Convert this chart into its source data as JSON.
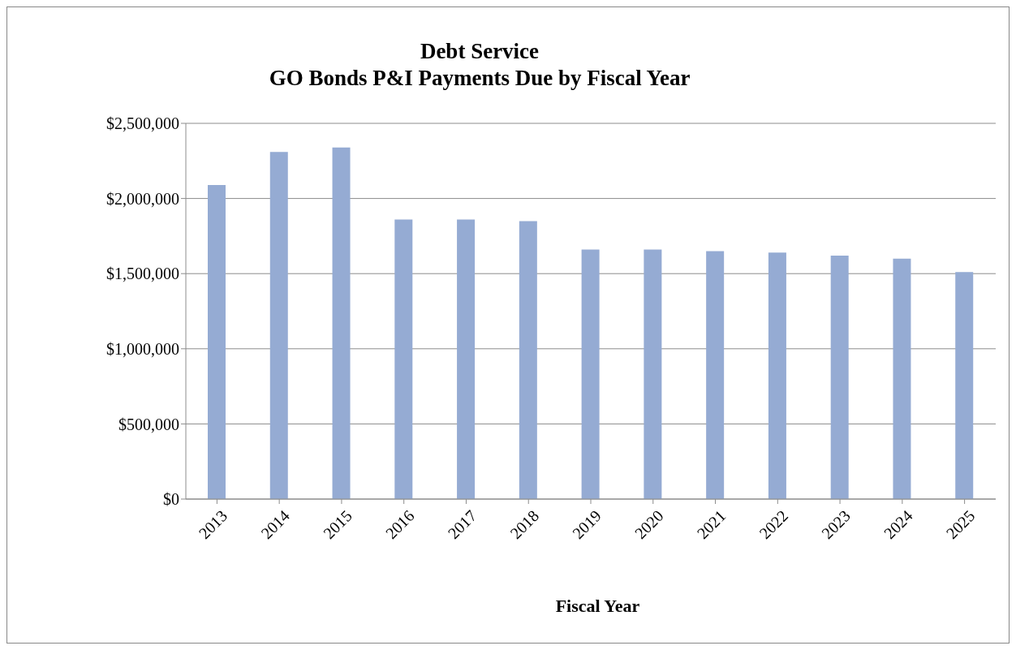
{
  "chart_data": {
    "type": "bar",
    "title": "Debt Service\nGO Bonds P&I Payments Due by Fiscal Year",
    "xlabel": "Fiscal Year",
    "categories": [
      "2013",
      "2014",
      "2015",
      "2016",
      "2017",
      "2018",
      "2019",
      "2020",
      "2021",
      "2022",
      "2023",
      "2024",
      "2025"
    ],
    "values": [
      2090000,
      2310000,
      2340000,
      1860000,
      1860000,
      1850000,
      1660000,
      1660000,
      1650000,
      1640000,
      1620000,
      1600000,
      1510000
    ],
    "color": "#95abd3",
    "ylim": [
      0,
      2500000
    ],
    "yticks": [
      {
        "value": 0,
        "label": "$0"
      },
      {
        "value": 500000,
        "label": "$500,000"
      },
      {
        "value": 1000000,
        "label": "$1,000,000"
      },
      {
        "value": 1500000,
        "label": "$1,500,000"
      },
      {
        "value": 2000000,
        "label": "$2,000,000"
      },
      {
        "value": 2500000,
        "label": "$2,500,000"
      }
    ],
    "grid": "y",
    "legend": false
  }
}
